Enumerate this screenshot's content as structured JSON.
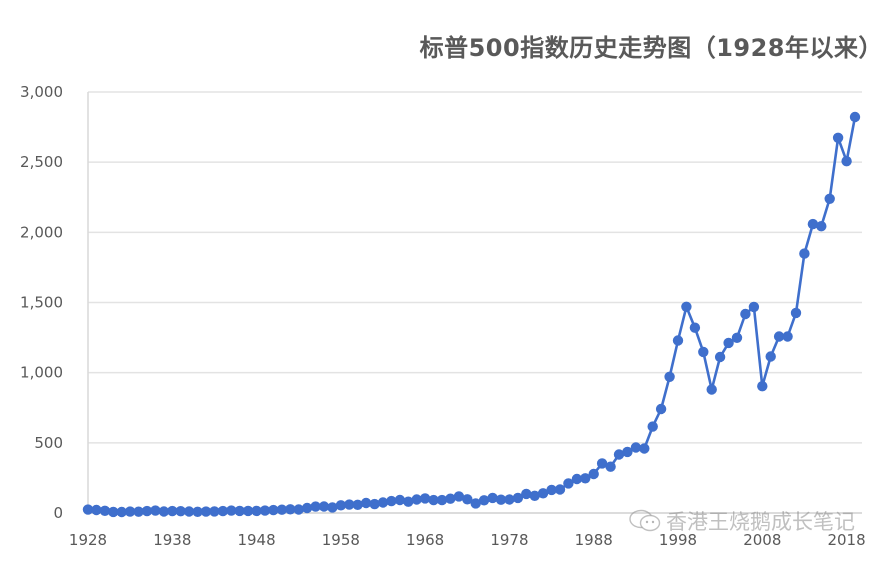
{
  "chart_data": {
    "type": "line",
    "title": "标普500指数历史走势图（1928年以来）",
    "xlabel": "",
    "ylabel": "",
    "ylim": [
      0,
      3000
    ],
    "xlim": [
      1928,
      2019
    ],
    "grid": true,
    "legend": null,
    "series_color": "#3f6fcc",
    "yticks": [
      "0",
      "500",
      "1,000",
      "1,500",
      "2,000",
      "2,500",
      "3,000"
    ],
    "ytick_values": [
      0,
      500,
      1000,
      1500,
      2000,
      2500,
      3000
    ],
    "xticks": [
      "1928",
      "1938",
      "1948",
      "1958",
      "1968",
      "1978",
      "1988",
      "1998",
      "2008",
      "2018"
    ],
    "x": [
      1928,
      1929,
      1930,
      1931,
      1932,
      1933,
      1934,
      1935,
      1936,
      1937,
      1938,
      1939,
      1940,
      1941,
      1942,
      1943,
      1944,
      1945,
      1946,
      1947,
      1948,
      1949,
      1950,
      1951,
      1952,
      1953,
      1954,
      1955,
      1956,
      1957,
      1958,
      1959,
      1960,
      1961,
      1962,
      1963,
      1964,
      1965,
      1966,
      1967,
      1968,
      1969,
      1970,
      1971,
      1972,
      1973,
      1974,
      1975,
      1976,
      1977,
      1978,
      1979,
      1980,
      1981,
      1982,
      1983,
      1984,
      1985,
      1986,
      1987,
      1988,
      1989,
      1990,
      1991,
      1992,
      1993,
      1994,
      1995,
      1996,
      1997,
      1998,
      1999,
      2000,
      2001,
      2002,
      2003,
      2004,
      2005,
      2006,
      2007,
      2008,
      2009,
      2010,
      2011,
      2012,
      2013,
      2014,
      2015,
      2016,
      2017,
      2018,
      2019
    ],
    "series": [
      {
        "name": "S&P 500",
        "values": [
          24.35,
          21.45,
          15.34,
          8.12,
          6.89,
          10.1,
          9.5,
          13.43,
          17.18,
          10.55,
          13.21,
          12.49,
          10.58,
          8.69,
          9.77,
          11.67,
          13.28,
          17.36,
          15.3,
          15.3,
          15.2,
          16.76,
          20.41,
          23.77,
          26.57,
          24.81,
          35.98,
          45.48,
          46.67,
          39.99,
          55.21,
          59.89,
          58.11,
          71.55,
          63.1,
          75.02,
          84.75,
          92.43,
          80.33,
          96.47,
          103.86,
          92.06,
          92.15,
          102.09,
          118.05,
          97.55,
          68.56,
          90.19,
          107.46,
          95.1,
          96.11,
          107.94,
          135.76,
          122.55,
          140.64,
          164.93,
          167.24,
          211.28,
          242.17,
          247.08,
          277.72,
          353.4,
          330.22,
          417.09,
          435.71,
          466.45,
          459.27,
          615.93,
          740.74,
          970.43,
          1229.23,
          1469.25,
          1320.28,
          1148.08,
          879.82,
          1111.92,
          1211.92,
          1248.29,
          1418.3,
          1468.36,
          903.25,
          1115.1,
          1257.64,
          1257.6,
          1426.19,
          1848.36,
          2058.9,
          2043.94,
          2238.83,
          2673.61,
          2506.85,
          2822.0
        ]
      }
    ]
  },
  "watermark": {
    "icon": "wechat-icon",
    "text": "香港王烧鹅成长笔记"
  }
}
